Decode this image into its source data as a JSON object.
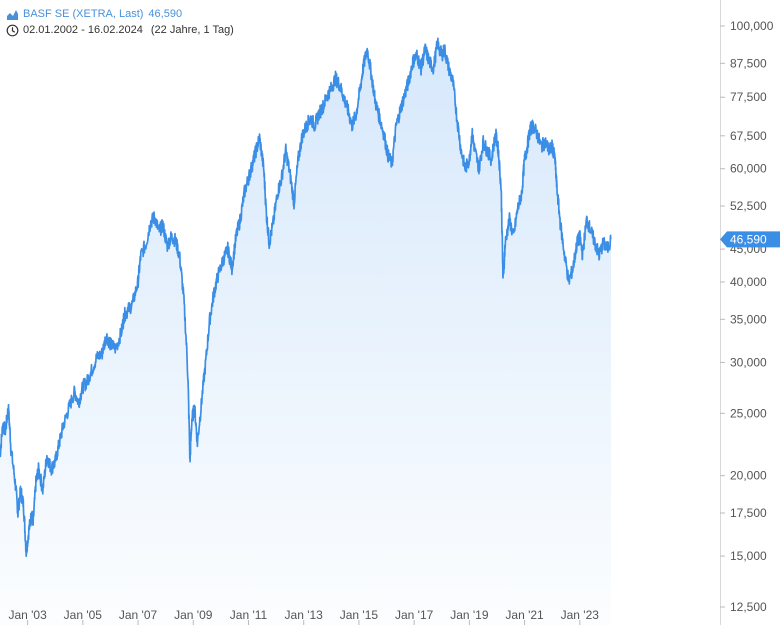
{
  "legend": {
    "title": "BASF SE (XETRA, Last)",
    "value": "46,590",
    "range": "02.01.2002 - 16.02.2024",
    "span": "(22 Jahre, 1 Tag)",
    "icons": [
      "area-chart-icon",
      "clock-icon"
    ],
    "accent": "#4a90d9"
  },
  "chart_data": {
    "type": "area",
    "title": "BASF SE (XETRA, Last)",
    "scale": "log",
    "ylim": [
      12000,
      106000
    ],
    "xlim": [
      2002.0,
      2024.13
    ],
    "x_ticks": [
      "Jan '03",
      "Jan '05",
      "Jan '07",
      "Jan '09",
      "Jan '11",
      "Jan '13",
      "Jan '15",
      "Jan '17",
      "Jan '19",
      "Jan '21",
      "Jan '23"
    ],
    "x_tick_years": [
      2003,
      2005,
      2007,
      2009,
      2011,
      2013,
      2015,
      2017,
      2019,
      2021,
      2023
    ],
    "y_ticks": [
      12.5,
      15,
      17.5,
      20,
      25,
      30,
      35,
      40,
      45,
      52.5,
      60,
      67.5,
      77.5,
      87.5,
      100
    ],
    "y_tick_labels": [
      "12,500",
      "15,000",
      "17,500",
      "20,000",
      "25,000",
      "30,000",
      "35,000",
      "40,000",
      "45,000",
      "52,500",
      "60,000",
      "67,500",
      "77,500",
      "87,500",
      "100,000"
    ],
    "last_value": 46.59,
    "last_label": "46,590",
    "grid": false,
    "line_color": "#3a8ee6",
    "fill_color": "#d6e8fb",
    "series": [
      {
        "x": [
          2002.0,
          2002.1,
          2002.2,
          2002.3,
          2002.4,
          2002.55,
          2002.65,
          2002.75,
          2002.85,
          2002.95,
          2003.05,
          2003.15,
          2003.2,
          2003.3,
          2003.4,
          2003.55,
          2003.7,
          2003.85,
          2004.0,
          2004.15,
          2004.3,
          2004.5,
          2004.7,
          2004.85,
          2005.0,
          2005.15,
          2005.3,
          2005.5,
          2005.7,
          2005.85,
          2006.0,
          2006.2,
          2006.4,
          2006.5,
          2006.6,
          2006.8,
          2007.0,
          2007.1,
          2007.3,
          2007.45,
          2007.6,
          2007.75,
          2007.9,
          2008.05,
          2008.2,
          2008.35,
          2008.5,
          2008.65,
          2008.8,
          2008.88,
          2008.95,
          2009.05,
          2009.15,
          2009.3,
          2009.45,
          2009.6,
          2009.75,
          2009.9,
          2010.1,
          2010.25,
          2010.4,
          2010.55,
          2010.7,
          2010.85,
          2011.0,
          2011.1,
          2011.25,
          2011.4,
          2011.55,
          2011.65,
          2011.75,
          2011.9,
          2012.05,
          2012.2,
          2012.35,
          2012.5,
          2012.65,
          2012.8,
          2012.95,
          2013.1,
          2013.25,
          2013.4,
          2013.55,
          2013.7,
          2013.85,
          2014.0,
          2014.15,
          2014.3,
          2014.45,
          2014.6,
          2014.75,
          2014.9,
          2015.05,
          2015.15,
          2015.3,
          2015.45,
          2015.6,
          2015.75,
          2015.9,
          2016.05,
          2016.2,
          2016.35,
          2016.5,
          2016.65,
          2016.8,
          2016.95,
          2017.1,
          2017.25,
          2017.4,
          2017.55,
          2017.7,
          2017.85,
          2018.0,
          2018.1,
          2018.25,
          2018.4,
          2018.55,
          2018.7,
          2018.85,
          2019.0,
          2019.1,
          2019.2,
          2019.35,
          2019.5,
          2019.65,
          2019.8,
          2019.95,
          2020.05,
          2020.15,
          2020.22,
          2020.3,
          2020.45,
          2020.6,
          2020.75,
          2020.9,
          2021.0,
          2021.1,
          2021.2,
          2021.3,
          2021.45,
          2021.6,
          2021.75,
          2021.9,
          2022.0,
          2022.1,
          2022.17,
          2022.3,
          2022.45,
          2022.6,
          2022.75,
          2022.9,
          2023.0,
          2023.1,
          2023.25,
          2023.4,
          2023.55,
          2023.7,
          2023.85,
          2024.0,
          2024.13
        ],
        "y": [
          21.5,
          24.0,
          23.5,
          25.5,
          22.0,
          19.5,
          17.5,
          19.0,
          18.0,
          15.2,
          16.5,
          17.5,
          16.8,
          19.5,
          20.5,
          19.0,
          21.5,
          20.5,
          21.0,
          22.5,
          24.0,
          25.5,
          27.0,
          26.0,
          27.5,
          28.0,
          29.0,
          30.5,
          31.0,
          33.0,
          32.0,
          31.5,
          33.5,
          35.5,
          36.0,
          37.0,
          40.0,
          44.0,
          46.0,
          49.5,
          50.5,
          48.0,
          49.0,
          45.5,
          47.0,
          46.5,
          44.0,
          38.0,
          29.0,
          21.0,
          24.5,
          25.5,
          22.5,
          26.0,
          30.0,
          35.0,
          38.5,
          41.0,
          43.5,
          45.0,
          42.0,
          47.0,
          50.0,
          55.0,
          58.0,
          60.0,
          63.5,
          67.0,
          60.0,
          51.0,
          46.0,
          49.5,
          55.0,
          58.0,
          64.0,
          59.0,
          53.0,
          62.0,
          67.5,
          70.0,
          72.0,
          70.0,
          73.0,
          75.0,
          78.0,
          80.0,
          83.0,
          81.0,
          77.5,
          74.0,
          70.0,
          73.0,
          80.0,
          86.0,
          92.0,
          84.0,
          76.0,
          72.0,
          68.0,
          63.0,
          61.0,
          70.0,
          74.0,
          78.0,
          82.0,
          88.0,
          90.0,
          86.0,
          92.0,
          88.0,
          86.0,
          94.0,
          90.0,
          92.0,
          86.0,
          82.0,
          72.0,
          64.0,
          60.0,
          62.0,
          68.0,
          64.0,
          60.0,
          66.0,
          64.0,
          62.0,
          68.0,
          64.0,
          56.0,
          40.0,
          46.0,
          50.0,
          47.0,
          52.0,
          55.0,
          62.0,
          65.0,
          69.0,
          70.0,
          68.0,
          65.0,
          66.0,
          64.0,
          65.0,
          62.0,
          56.0,
          49.0,
          44.0,
          40.0,
          42.0,
          46.0,
          47.0,
          44.0,
          50.0,
          48.0,
          46.0,
          44.0,
          46.0,
          45.0,
          46.59
        ]
      }
    ]
  }
}
